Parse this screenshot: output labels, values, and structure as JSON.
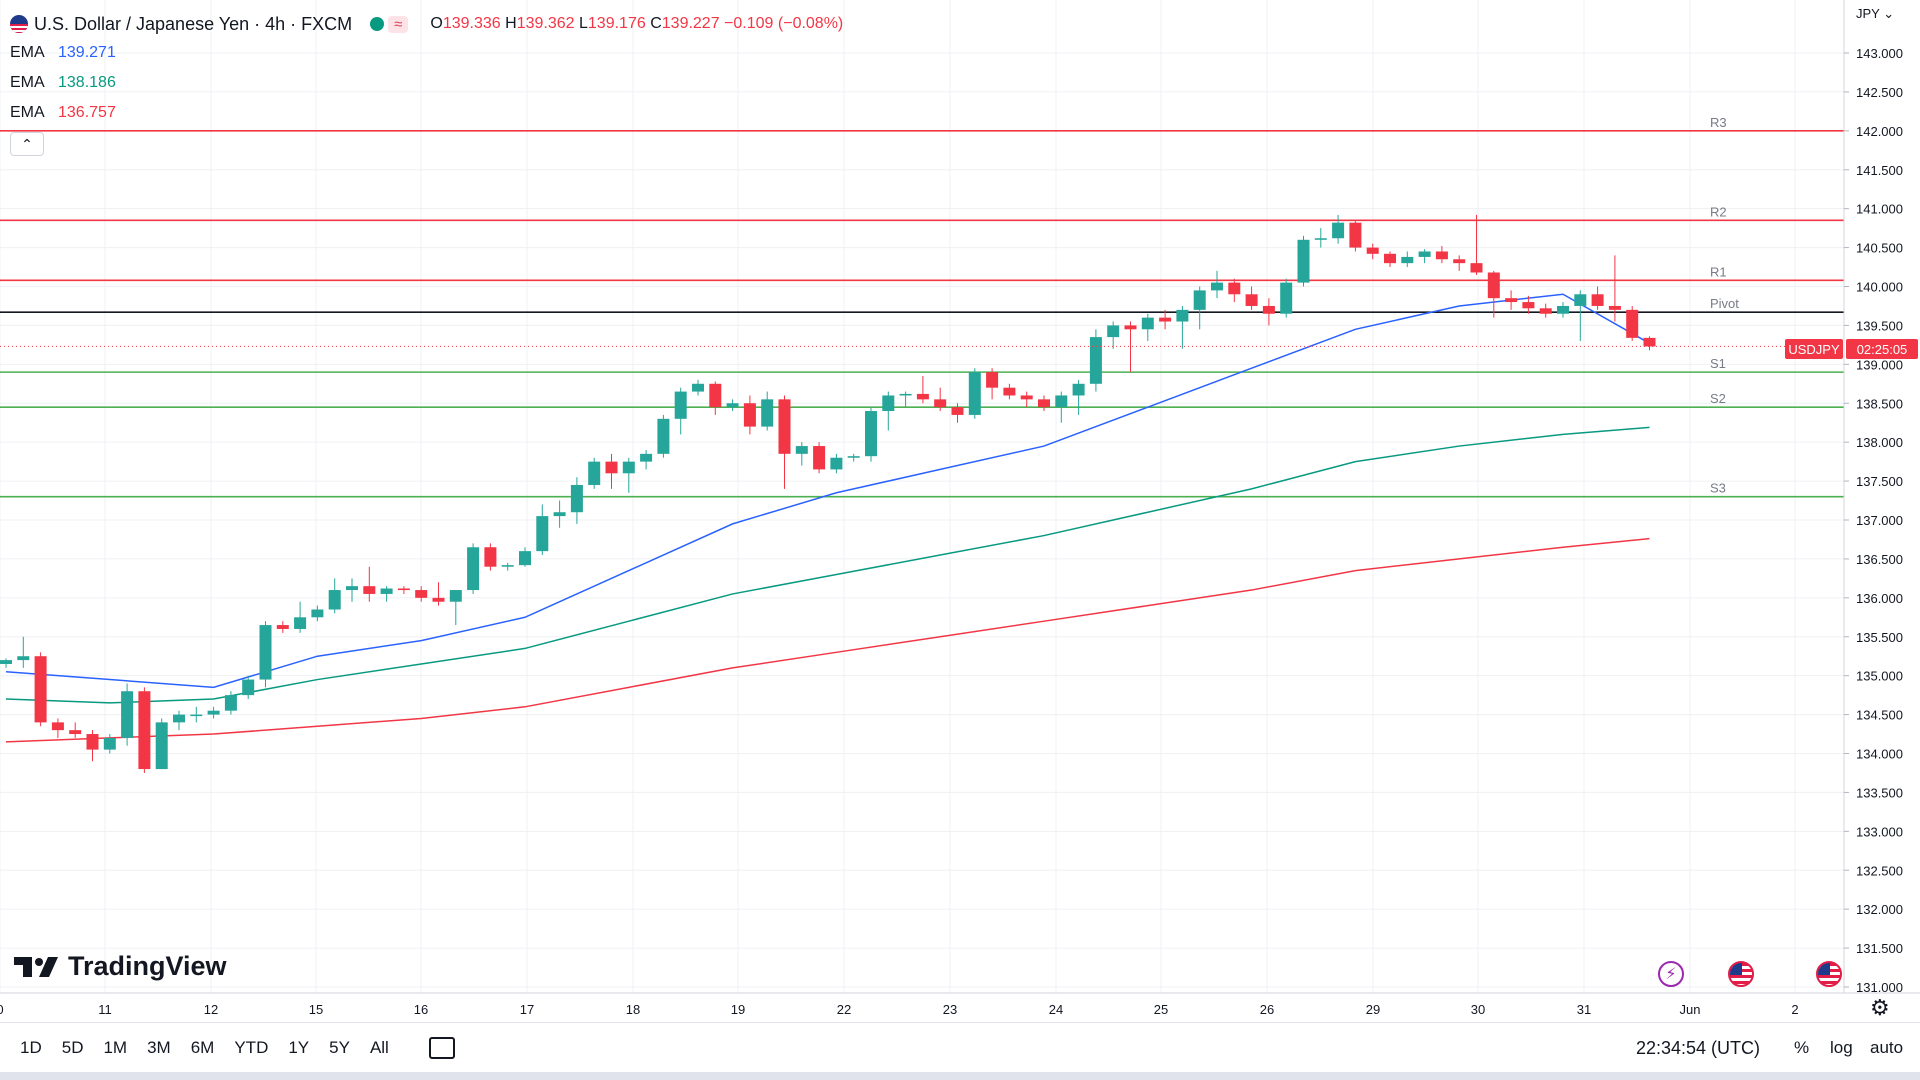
{
  "header": {
    "symbol_title": "U.S. Dollar / Japanese Yen · 4h · FXCM",
    "ohlc": {
      "o_label": "O",
      "o": "139.336",
      "h_label": "H",
      "h": "139.362",
      "l_label": "L",
      "l": "139.176",
      "c_label": "C",
      "c": "139.227",
      "change": "−0.109 (−0.08%)"
    },
    "wave_icon": "≈"
  },
  "indicators": [
    {
      "name": "EMA",
      "value": "139.271",
      "color": "#2962ff"
    },
    {
      "name": "EMA",
      "value": "138.186",
      "color": "#089981"
    },
    {
      "name": "EMA",
      "value": "136.757",
      "color": "#f23645"
    }
  ],
  "currency_label": "JPY",
  "last_price": {
    "symbol": "USDJPY",
    "countdown": "02:25:05"
  },
  "branding": {
    "logo_text": "TradingView"
  },
  "bottom_bar": {
    "ranges": [
      "1D",
      "5D",
      "1M",
      "3M",
      "6M",
      "YTD",
      "1Y",
      "5Y",
      "All"
    ],
    "clock": "22:34:54 (UTC)",
    "percent_label": "%",
    "log_label": "log",
    "auto_label": "auto"
  },
  "colors": {
    "up": "#26a69a",
    "down": "#f23645",
    "pivot_line": "#131722",
    "resistance": "#f23645",
    "support": "#4caf50",
    "grid": "#eef0f4"
  },
  "chart_data": {
    "type": "candlestick",
    "title": "U.S. Dollar / Japanese Yen · 4h · FXCM",
    "y_axis_ticks": [
      "143.000",
      "142.500",
      "142.000",
      "141.500",
      "141.000",
      "140.500",
      "140.000",
      "139.500",
      "139.000",
      "138.500",
      "138.000",
      "137.500",
      "137.000",
      "136.500",
      "136.000",
      "135.500",
      "135.000",
      "134.500",
      "134.000",
      "133.500",
      "133.000",
      "132.500",
      "132.000",
      "131.500",
      "131.000"
    ],
    "x_axis_ticks": [
      "0",
      "11",
      "12",
      "15",
      "16",
      "17",
      "18",
      "19",
      "22",
      "23",
      "24",
      "25",
      "26",
      "29",
      "30",
      "31",
      "Jun",
      "2"
    ],
    "ylim": [
      131.0,
      143.0
    ],
    "levels": [
      {
        "label": "R3",
        "value": 142.0
      },
      {
        "label": "R2",
        "value": 140.85
      },
      {
        "label": "R1",
        "value": 140.08
      },
      {
        "label": "Pivot",
        "value": 139.67
      },
      {
        "label": "S1",
        "value": 138.9
      },
      {
        "label": "S2",
        "value": 138.45
      },
      {
        "label": "S3",
        "value": 137.3
      }
    ],
    "candles": [
      [
        135.15,
        135.22,
        135.1,
        135.2
      ],
      [
        135.2,
        135.5,
        135.1,
        135.25
      ],
      [
        135.25,
        135.3,
        134.35,
        134.4
      ],
      [
        134.4,
        134.45,
        134.2,
        134.3
      ],
      [
        134.3,
        134.4,
        134.2,
        134.25
      ],
      [
        134.25,
        134.3,
        133.9,
        134.05
      ],
      [
        134.05,
        134.25,
        134.0,
        134.2
      ],
      [
        134.2,
        134.9,
        134.1,
        134.8
      ],
      [
        134.8,
        134.85,
        133.75,
        133.8
      ],
      [
        133.8,
        134.45,
        133.8,
        134.4
      ],
      [
        134.4,
        134.55,
        134.3,
        134.5
      ],
      [
        134.5,
        134.6,
        134.4,
        134.5
      ],
      [
        134.5,
        134.6,
        134.45,
        134.55
      ],
      [
        134.55,
        134.8,
        134.5,
        134.75
      ],
      [
        134.75,
        135.0,
        134.7,
        134.95
      ],
      [
        134.95,
        135.7,
        134.85,
        135.65
      ],
      [
        135.65,
        135.7,
        135.55,
        135.6
      ],
      [
        135.6,
        135.95,
        135.55,
        135.75
      ],
      [
        135.75,
        135.9,
        135.7,
        135.85
      ],
      [
        135.85,
        136.25,
        135.8,
        136.1
      ],
      [
        136.1,
        136.25,
        135.95,
        136.15
      ],
      [
        136.15,
        136.4,
        135.95,
        136.05
      ],
      [
        136.05,
        136.15,
        135.95,
        136.12
      ],
      [
        136.12,
        136.15,
        136.05,
        136.1
      ],
      [
        136.1,
        136.15,
        135.95,
        136.0
      ],
      [
        136.0,
        136.2,
        135.9,
        135.95
      ],
      [
        135.95,
        136.1,
        135.65,
        136.1
      ],
      [
        136.1,
        136.7,
        136.05,
        136.65
      ],
      [
        136.65,
        136.7,
        136.35,
        136.4
      ],
      [
        136.4,
        136.45,
        136.35,
        136.42
      ],
      [
        136.42,
        136.65,
        136.4,
        136.6
      ],
      [
        136.6,
        137.2,
        136.55,
        137.05
      ],
      [
        137.05,
        137.25,
        136.9,
        137.1
      ],
      [
        137.1,
        137.55,
        136.95,
        137.45
      ],
      [
        137.45,
        137.8,
        137.4,
        137.75
      ],
      [
        137.75,
        137.85,
        137.4,
        137.6
      ],
      [
        137.6,
        137.8,
        137.35,
        137.75
      ],
      [
        137.75,
        137.9,
        137.65,
        137.85
      ],
      [
        137.85,
        138.35,
        137.8,
        138.3
      ],
      [
        138.3,
        138.7,
        138.1,
        138.65
      ],
      [
        138.65,
        138.8,
        138.6,
        138.75
      ],
      [
        138.75,
        138.78,
        138.35,
        138.45
      ],
      [
        138.45,
        138.55,
        138.4,
        138.5
      ],
      [
        138.5,
        138.6,
        138.1,
        138.2
      ],
      [
        138.2,
        138.65,
        138.15,
        138.55
      ],
      [
        138.55,
        138.6,
        137.4,
        137.85
      ],
      [
        137.85,
        138.0,
        137.7,
        137.95
      ],
      [
        137.95,
        138.0,
        137.6,
        137.65
      ],
      [
        137.65,
        137.85,
        137.6,
        137.8
      ],
      [
        137.8,
        137.85,
        137.75,
        137.82
      ],
      [
        137.82,
        138.45,
        137.75,
        138.4
      ],
      [
        138.4,
        138.65,
        138.15,
        138.6
      ],
      [
        138.6,
        138.65,
        138.45,
        138.62
      ],
      [
        138.62,
        138.85,
        138.5,
        138.55
      ],
      [
        138.55,
        138.7,
        138.4,
        138.45
      ],
      [
        138.45,
        138.5,
        138.25,
        138.35
      ],
      [
        138.35,
        138.95,
        138.3,
        138.9
      ],
      [
        138.9,
        138.95,
        138.55,
        138.7
      ],
      [
        138.7,
        138.75,
        138.55,
        138.6
      ],
      [
        138.6,
        138.65,
        138.45,
        138.55
      ],
      [
        138.55,
        138.6,
        138.4,
        138.45
      ],
      [
        138.45,
        138.65,
        138.25,
        138.6
      ],
      [
        138.6,
        138.8,
        138.35,
        138.75
      ],
      [
        138.75,
        139.45,
        138.65,
        139.35
      ],
      [
        139.35,
        139.55,
        139.2,
        139.5
      ],
      [
        139.5,
        139.55,
        138.9,
        139.45
      ],
      [
        139.45,
        139.65,
        139.3,
        139.6
      ],
      [
        139.6,
        139.7,
        139.45,
        139.55
      ],
      [
        139.55,
        139.75,
        139.2,
        139.7
      ],
      [
        139.7,
        140.0,
        139.45,
        139.95
      ],
      [
        139.95,
        140.2,
        139.85,
        140.05
      ],
      [
        140.05,
        140.1,
        139.8,
        139.9
      ],
      [
        139.9,
        140.0,
        139.7,
        139.75
      ],
      [
        139.75,
        139.85,
        139.5,
        139.65
      ],
      [
        139.65,
        140.1,
        139.6,
        140.05
      ],
      [
        140.05,
        140.65,
        140.0,
        140.6
      ],
      [
        140.6,
        140.75,
        140.5,
        140.62
      ],
      [
        140.62,
        140.92,
        140.55,
        140.82
      ],
      [
        140.82,
        140.85,
        140.45,
        140.5
      ],
      [
        140.5,
        140.55,
        140.35,
        140.42
      ],
      [
        140.42,
        140.45,
        140.25,
        140.3
      ],
      [
        140.3,
        140.45,
        140.25,
        140.38
      ],
      [
        140.38,
        140.48,
        140.3,
        140.45
      ],
      [
        140.45,
        140.52,
        140.3,
        140.35
      ],
      [
        140.35,
        140.4,
        140.2,
        140.3
      ],
      [
        140.3,
        140.92,
        140.15,
        140.18
      ],
      [
        140.18,
        140.2,
        139.6,
        139.85
      ],
      [
        139.85,
        139.95,
        139.7,
        139.8
      ],
      [
        139.8,
        139.88,
        139.65,
        139.72
      ],
      [
        139.72,
        139.78,
        139.6,
        139.65
      ],
      [
        139.65,
        139.8,
        139.6,
        139.75
      ],
      [
        139.75,
        139.95,
        139.3,
        139.9
      ],
      [
        139.9,
        140.0,
        139.7,
        139.75
      ],
      [
        139.75,
        140.4,
        139.55,
        139.7
      ],
      [
        139.7,
        139.75,
        139.3,
        139.34
      ],
      [
        139.34,
        139.36,
        139.18,
        139.23
      ]
    ],
    "ema_series": [
      {
        "name": "EMA",
        "value": "139.271",
        "color": "#2962ff",
        "x": [
          0,
          6,
          12,
          18,
          24,
          30,
          36,
          42,
          48,
          54,
          60,
          66,
          72,
          78,
          84,
          90,
          95
        ],
        "y": [
          135.05,
          134.95,
          134.85,
          135.25,
          135.45,
          135.75,
          136.35,
          136.95,
          137.35,
          137.65,
          137.95,
          138.45,
          138.95,
          139.45,
          139.75,
          139.9,
          139.27
        ]
      },
      {
        "name": "EMA",
        "value": "138.186",
        "color": "#089981",
        "x": [
          0,
          6,
          12,
          18,
          24,
          30,
          36,
          42,
          48,
          54,
          60,
          66,
          72,
          78,
          84,
          90,
          95
        ],
        "y": [
          134.7,
          134.65,
          134.7,
          134.95,
          135.15,
          135.35,
          135.7,
          136.05,
          136.3,
          136.55,
          136.8,
          137.1,
          137.4,
          137.75,
          137.95,
          138.1,
          138.19
        ]
      },
      {
        "name": "EMA",
        "value": "136.757",
        "color": "#f23645",
        "x": [
          0,
          6,
          12,
          18,
          24,
          30,
          36,
          42,
          48,
          54,
          60,
          66,
          72,
          78,
          84,
          90,
          95
        ],
        "y": [
          134.15,
          134.2,
          134.25,
          134.35,
          134.45,
          134.6,
          134.85,
          135.1,
          135.3,
          135.5,
          135.7,
          135.9,
          136.1,
          136.35,
          136.5,
          136.65,
          136.76
        ]
      }
    ]
  }
}
